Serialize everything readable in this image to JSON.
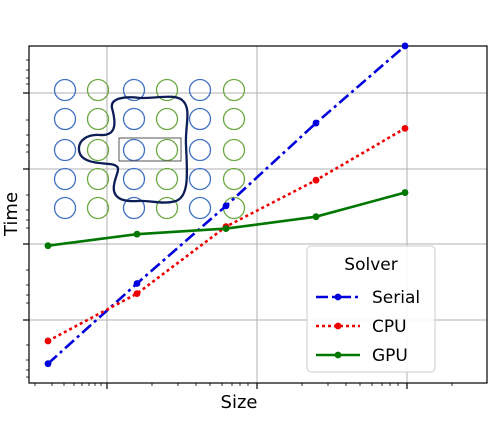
{
  "chart_data": {
    "type": "line",
    "title": "",
    "xlabel": "Size",
    "ylabel": "Time",
    "xscale": "log",
    "yscale": "log",
    "tick_labels_shown": false,
    "grid": true,
    "legend": {
      "title": "Solver",
      "placement": "lower-right"
    },
    "x": [
      1,
      2,
      3,
      4,
      5
    ],
    "series": [
      {
        "name": "Serial",
        "color": "#0000dd",
        "linestyle": "dash-dot",
        "values": [
          0.026,
          0.3,
          3.2,
          40,
          420
        ]
      },
      {
        "name": "CPU",
        "color": "#ee0000",
        "linestyle": "dotted",
        "values": [
          0.052,
          0.22,
          1.7,
          7.0,
          34
        ]
      },
      {
        "name": "GPU",
        "color": "#007700",
        "linestyle": "solid",
        "values": [
          0.95,
          1.35,
          1.6,
          2.3,
          4.8
        ]
      }
    ]
  },
  "inset": {
    "description_icon": "circle-array-with-blob-inset",
    "colors": {
      "circle_blue": "#3d6fc2",
      "circle_green": "#69a83f",
      "blob": "#0d1d55",
      "rect": "#555555"
    }
  }
}
